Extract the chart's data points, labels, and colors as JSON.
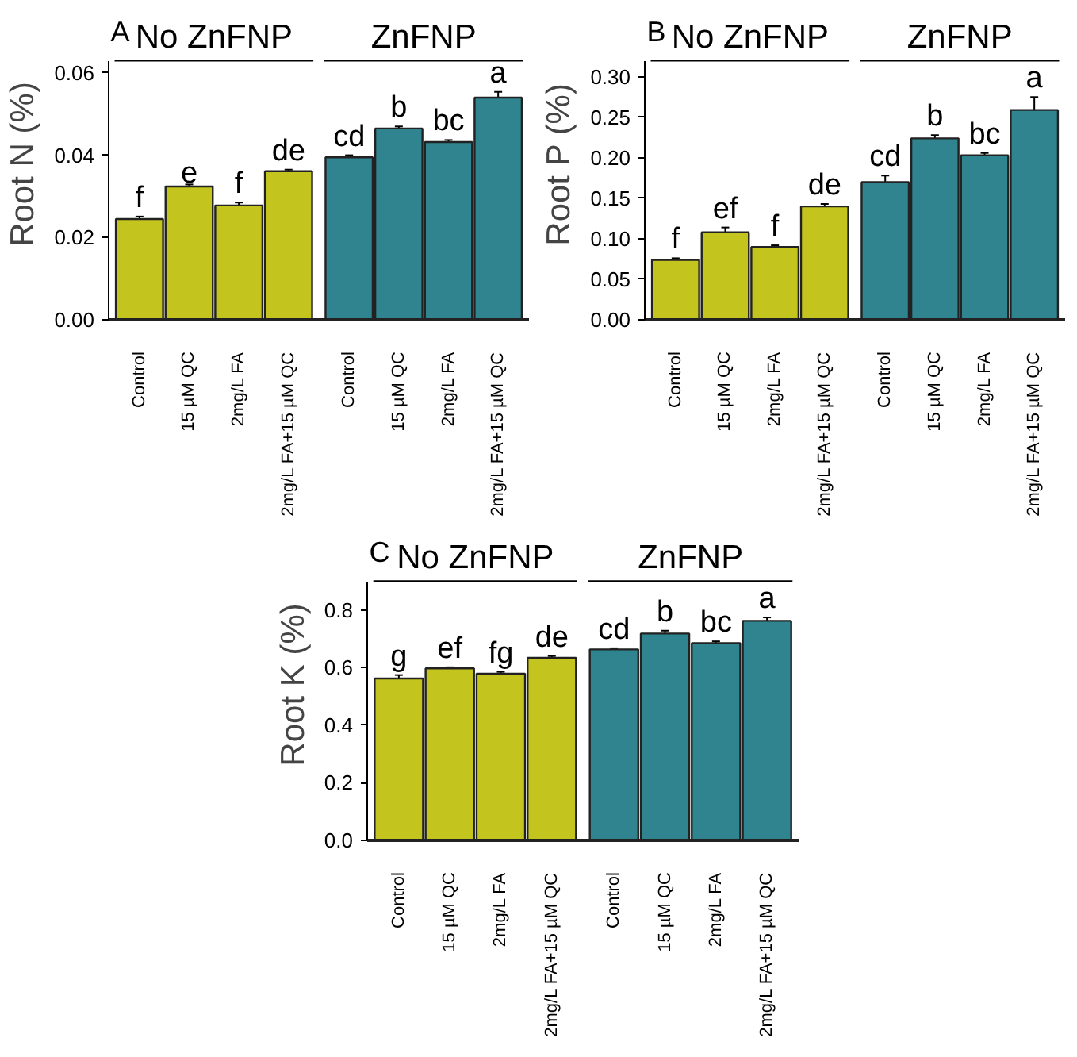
{
  "chart_data": [
    {
      "type": "bar",
      "title": "A",
      "ylabel": "Root N (%)",
      "categories": [
        "Control",
        "15 µM QC",
        "2mg/L FA",
        "2mg/L FA+15 µM QC",
        "Control",
        "15 µM QC",
        "2mg/L FA",
        "2mg/L FA+15 µM QC"
      ],
      "series": [
        {
          "color": "#c4c41e",
          "values": [
            0.0245,
            0.0324,
            0.0278,
            0.0361,
            null,
            null,
            null,
            null
          ],
          "errors": [
            0.0006,
            0.0005,
            0.0007,
            0.0004,
            null,
            null,
            null,
            null
          ]
        },
        {
          "color": "#2f8490",
          "values": [
            null,
            null,
            null,
            null,
            0.0395,
            0.0465,
            0.0432,
            0.054
          ],
          "errors": [
            null,
            null,
            null,
            null,
            0.0005,
            0.0005,
            0.0005,
            0.0014
          ]
        }
      ],
      "ylim": [
        0,
        0.063
      ],
      "yticks": [
        {
          "value": 0,
          "label": "0.00"
        },
        {
          "value": 0.02,
          "label": "0.02"
        },
        {
          "value": 0.04,
          "label": "0.04"
        },
        {
          "value": 0.06,
          "label": "0.06"
        }
      ],
      "annotations": [
        "f",
        "e",
        "f",
        "de",
        "cd",
        "b",
        "bc",
        "a",
        "No ZnFNP",
        "ZnFNP"
      ]
    },
    {
      "type": "bar",
      "title": "B",
      "ylabel": "Root P (%)",
      "categories": [
        "Control",
        "15 µM QC",
        "2mg/L FA",
        "2mg/L FA+15 µM QC",
        "Control",
        "15 µM QC",
        "2mg/L FA",
        "2mg/L FA+15 µM QC"
      ],
      "series": [
        {
          "color": "#c4c41e",
          "values": [
            0.074,
            0.108,
            0.09,
            0.14,
            null,
            null,
            null,
            null
          ],
          "errors": [
            0.002,
            0.006,
            0.002,
            0.003,
            null,
            null,
            null,
            null
          ]
        },
        {
          "color": "#2f8490",
          "values": [
            null,
            null,
            null,
            null,
            0.17,
            0.224,
            0.203,
            0.259
          ],
          "errors": [
            null,
            null,
            null,
            null,
            0.008,
            0.004,
            0.003,
            0.016
          ]
        }
      ],
      "ylim": [
        0,
        0.32
      ],
      "yticks": [
        {
          "value": 0,
          "label": "0.00"
        },
        {
          "value": 0.05,
          "label": "0.05"
        },
        {
          "value": 0.1,
          "label": "0.10"
        },
        {
          "value": 0.15,
          "label": "0.15"
        },
        {
          "value": 0.2,
          "label": "0.20"
        },
        {
          "value": 0.25,
          "label": "0.25"
        },
        {
          "value": 0.3,
          "label": "0.30"
        }
      ],
      "annotations": [
        "f",
        "ef",
        "f",
        "de",
        "cd",
        "b",
        "bc",
        "a",
        "No ZnFNP",
        "ZnFNP"
      ]
    },
    {
      "type": "bar",
      "title": "C",
      "ylabel": "Root K (%)",
      "categories": [
        "Control",
        "15 µM QC",
        "2mg/L FA",
        "2mg/L FA+15 µM QC",
        "Control",
        "15 µM QC",
        "2mg/L FA",
        "2mg/L FA+15 µM QC"
      ],
      "series": [
        {
          "color": "#c4c41e",
          "values": [
            0.562,
            0.597,
            0.579,
            0.634,
            null,
            null,
            null,
            null
          ],
          "errors": [
            0.012,
            0.004,
            0.006,
            0.006,
            null,
            null,
            null,
            null
          ]
        },
        {
          "color": "#2f8490",
          "values": [
            null,
            null,
            null,
            null,
            0.663,
            0.718,
            0.685,
            0.762
          ],
          "errors": [
            null,
            null,
            null,
            null,
            0.004,
            0.01,
            0.006,
            0.012
          ]
        }
      ],
      "ylim": [
        0,
        0.9
      ],
      "yticks": [
        {
          "value": 0,
          "label": "0.0"
        },
        {
          "value": 0.2,
          "label": "0.2"
        },
        {
          "value": 0.4,
          "label": "0.4"
        },
        {
          "value": 0.6,
          "label": "0.6"
        },
        {
          "value": 0.8,
          "label": "0.8"
        }
      ],
      "annotations": [
        "g",
        "ef",
        "fg",
        "de",
        "cd",
        "b",
        "bc",
        "a",
        "No ZnFNP",
        "ZnFNP"
      ]
    }
  ]
}
